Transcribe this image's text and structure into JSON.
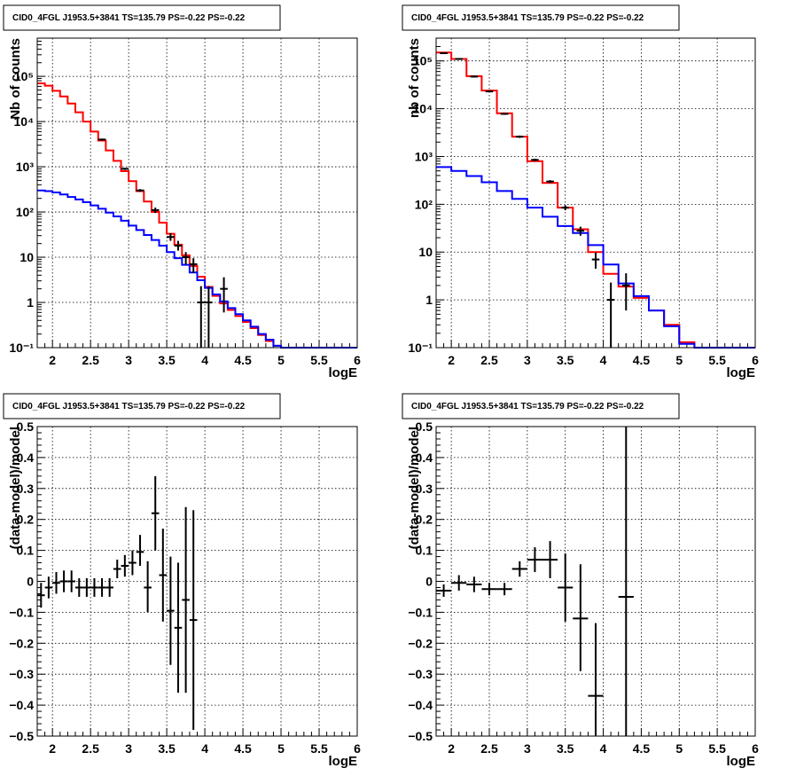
{
  "chart_data": [
    {
      "id": "p1",
      "type": "line",
      "title": "CID0_4FGL J1953.5+3841 TS=135.79 PS=-0.22 PS=-0.22",
      "xlabel": "logE",
      "ylabel": "Nb of counts",
      "xlim": [
        1.8,
        6.0
      ],
      "ylim": [
        0.1,
        700000
      ],
      "log_y": true,
      "grid": true,
      "xticks": [
        2,
        2.5,
        3,
        3.5,
        4,
        4.5,
        5,
        5.5,
        6
      ],
      "xtick_labels": [
        "2",
        "2.5",
        "3",
        "3.5",
        "4",
        "4.5",
        "5",
        "5.5",
        "6"
      ],
      "yticks": [
        0.1,
        1,
        10,
        100,
        1000,
        10000,
        100000
      ],
      "ytick_labels": [
        "10⁻¹",
        "1",
        "10",
        "10²",
        "10³",
        "10⁴",
        "10⁵"
      ],
      "bin_edges": [
        1.8,
        1.9,
        2.0,
        2.1,
        2.2,
        2.3,
        2.4,
        2.5,
        2.6,
        2.7,
        2.8,
        2.9,
        3.0,
        3.1,
        3.2,
        3.3,
        3.4,
        3.5,
        3.6,
        3.7,
        3.8,
        3.9,
        4.0,
        4.1,
        4.2,
        4.3,
        4.4,
        4.5,
        4.6,
        4.7,
        4.8,
        4.9,
        5.0,
        5.1,
        5.2,
        5.3,
        5.4,
        5.5,
        5.6,
        5.7,
        5.8,
        5.9,
        6.0
      ],
      "series": [
        {
          "color": "#ff0000",
          "values": [
            70000,
            62000,
            48000,
            36000,
            25000,
            16000,
            10000,
            6000,
            3800,
            2300,
            1350,
            800,
            480,
            290,
            170,
            100,
            58,
            33,
            19,
            11,
            6.4,
            3.7,
            2.2,
            1.4,
            0.95,
            0.68,
            0.5,
            0.37,
            0.27,
            0.19,
            0.14,
            0.11,
            0.1,
            0.1,
            0.1,
            0.1,
            0.1,
            0.1,
            0.1,
            0.1,
            0.1,
            0.1
          ]
        },
        {
          "color": "#0000ff",
          "values": [
            300,
            290,
            270,
            245,
            215,
            190,
            165,
            140,
            118,
            97,
            80,
            64,
            50,
            40,
            31,
            24,
            18,
            13,
            9.5,
            6.8,
            4.6,
            3.1,
            2.1,
            1.5,
            1.05,
            0.75,
            0.55,
            0.4,
            0.29,
            0.2,
            0.15,
            0.11,
            0.1,
            0.1,
            0.1,
            0.1,
            0.1,
            0.1,
            0.1,
            0.1,
            0.1,
            0.1
          ]
        }
      ],
      "points": [
        {
          "x": 2.65,
          "y": 4000,
          "ylo": 3800,
          "yhi": 4200
        },
        {
          "x": 2.95,
          "y": 900,
          "ylo": 850,
          "yhi": 950
        },
        {
          "x": 3.15,
          "y": 300,
          "ylo": 280,
          "yhi": 320
        },
        {
          "x": 3.35,
          "y": 110,
          "ylo": 95,
          "yhi": 125
        },
        {
          "x": 3.55,
          "y": 28,
          "ylo": 23,
          "yhi": 34
        },
        {
          "x": 3.65,
          "y": 18,
          "ylo": 14,
          "yhi": 23
        },
        {
          "x": 3.75,
          "y": 10,
          "ylo": 7,
          "yhi": 13
        },
        {
          "x": 3.85,
          "y": 7,
          "ylo": 4.5,
          "yhi": 9.5
        },
        {
          "x": 3.95,
          "y": 1,
          "ylo": 0.1,
          "yhi": 2.3
        },
        {
          "x": 4.05,
          "y": 1,
          "ylo": 0.1,
          "yhi": 2.3
        },
        {
          "x": 4.25,
          "y": 2,
          "ylo": 0.6,
          "yhi": 3.6
        }
      ]
    },
    {
      "id": "p2",
      "type": "line",
      "title": "CID0_4FGL J1953.5+3841 TS=135.79 PS=-0.22 PS=-0.22",
      "xlabel": "logE",
      "ylabel": "nb of counts",
      "xlim": [
        1.8,
        6.0
      ],
      "ylim": [
        0.1,
        300000
      ],
      "log_y": true,
      "grid": true,
      "xticks": [
        2,
        2.5,
        3,
        3.5,
        4,
        4.5,
        5,
        5.5,
        6
      ],
      "xtick_labels": [
        "2",
        "2.5",
        "3",
        "3.5",
        "4",
        "4.5",
        "5",
        "5.5",
        "6"
      ],
      "yticks": [
        0.1,
        1,
        10,
        100,
        1000,
        10000,
        100000
      ],
      "ytick_labels": [
        "10⁻¹",
        "1",
        "10",
        "10²",
        "10³",
        "10⁴",
        "10⁵"
      ],
      "bin_edges": [
        1.8,
        2.0,
        2.2,
        2.4,
        2.6,
        2.8,
        3.0,
        3.2,
        3.4,
        3.6,
        3.8,
        4.0,
        4.2,
        4.4,
        4.6,
        4.8,
        5.0,
        5.2,
        5.4,
        5.6,
        5.8,
        6.0
      ],
      "series": [
        {
          "color": "#ff0000",
          "values": [
            150000,
            110000,
            48000,
            24000,
            8000,
            2600,
            800,
            280,
            85,
            30,
            10,
            3.5,
            1.9,
            1.1,
            0.6,
            0.3,
            0.13,
            0.1,
            0.1,
            0.1,
            0.1
          ]
        },
        {
          "color": "#0000ff",
          "values": [
            600,
            500,
            390,
            290,
            190,
            130,
            85,
            55,
            35,
            25,
            14,
            5.5,
            2.2,
            1.2,
            0.6,
            0.28,
            0.12,
            0.1,
            0.1,
            0.1,
            0.1
          ]
        }
      ],
      "points": [
        {
          "x": 1.9,
          "y": 145000,
          "ylo": 140000,
          "yhi": 150000
        },
        {
          "x": 2.1,
          "y": 110000,
          "ylo": 105000,
          "yhi": 115000
        },
        {
          "x": 2.3,
          "y": 47000,
          "ylo": 45000,
          "yhi": 49000
        },
        {
          "x": 2.5,
          "y": 23000,
          "ylo": 22000,
          "yhi": 24000
        },
        {
          "x": 2.7,
          "y": 7800,
          "ylo": 7500,
          "yhi": 8100
        },
        {
          "x": 2.9,
          "y": 2600,
          "ylo": 2450,
          "yhi": 2750
        },
        {
          "x": 3.1,
          "y": 850,
          "ylo": 800,
          "yhi": 900
        },
        {
          "x": 3.3,
          "y": 300,
          "ylo": 280,
          "yhi": 320
        },
        {
          "x": 3.5,
          "y": 85,
          "ylo": 75,
          "yhi": 95
        },
        {
          "x": 3.7,
          "y": 28,
          "ylo": 22,
          "yhi": 34
        },
        {
          "x": 3.9,
          "y": 7,
          "ylo": 4.5,
          "yhi": 9.8
        },
        {
          "x": 4.1,
          "y": 1,
          "ylo": 0.1,
          "yhi": 2.3
        },
        {
          "x": 4.3,
          "y": 2,
          "ylo": 0.6,
          "yhi": 3.6
        }
      ]
    },
    {
      "id": "p3",
      "type": "scatter",
      "title": "CID0_4FGL J1953.5+3841 TS=135.79 PS=-0.22 PS=-0.22",
      "xlabel": "logE",
      "ylabel": "(data-model)/model",
      "xlim": [
        1.8,
        6.0
      ],
      "ylim": [
        -0.5,
        0.5
      ],
      "log_y": false,
      "grid": true,
      "xticks": [
        2,
        2.5,
        3,
        3.5,
        4,
        4.5,
        5,
        5.5,
        6
      ],
      "xtick_labels": [
        "2",
        "2.5",
        "3",
        "3.5",
        "4",
        "4.5",
        "5",
        "5.5",
        "6"
      ],
      "yticks": [
        -0.5,
        -0.4,
        -0.3,
        -0.2,
        -0.1,
        0,
        0.1,
        0.2,
        0.3,
        0.4,
        0.5
      ],
      "ytick_labels": [
        "−0.5",
        "−0.4",
        "−0.3",
        "−0.2",
        "−0.1",
        "0",
        "0.1",
        "0.2",
        "0.3",
        "0.4",
        "0.5"
      ],
      "xerr": 0.05,
      "points": [
        {
          "x": 1.85,
          "y": -0.045,
          "ylo": -0.085,
          "yhi": -0.005
        },
        {
          "x": 1.95,
          "y": -0.02,
          "ylo": -0.055,
          "yhi": 0.015
        },
        {
          "x": 2.05,
          "y": -0.005,
          "ylo": -0.04,
          "yhi": 0.03
        },
        {
          "x": 2.15,
          "y": 0.0,
          "ylo": -0.035,
          "yhi": 0.035
        },
        {
          "x": 2.25,
          "y": 0.0,
          "ylo": -0.035,
          "yhi": 0.035
        },
        {
          "x": 2.35,
          "y": -0.02,
          "ylo": -0.05,
          "yhi": 0.01
        },
        {
          "x": 2.45,
          "y": -0.02,
          "ylo": -0.05,
          "yhi": 0.01
        },
        {
          "x": 2.55,
          "y": -0.02,
          "ylo": -0.05,
          "yhi": 0.01
        },
        {
          "x": 2.65,
          "y": -0.02,
          "ylo": -0.05,
          "yhi": 0.01
        },
        {
          "x": 2.75,
          "y": -0.02,
          "ylo": -0.05,
          "yhi": 0.01
        },
        {
          "x": 2.85,
          "y": 0.04,
          "ylo": 0.01,
          "yhi": 0.07
        },
        {
          "x": 2.95,
          "y": 0.05,
          "ylo": 0.015,
          "yhi": 0.085
        },
        {
          "x": 3.05,
          "y": 0.06,
          "ylo": 0.02,
          "yhi": 0.1
        },
        {
          "x": 3.15,
          "y": 0.095,
          "ylo": 0.05,
          "yhi": 0.15
        },
        {
          "x": 3.25,
          "y": -0.02,
          "ylo": -0.1,
          "yhi": 0.065
        },
        {
          "x": 3.35,
          "y": 0.22,
          "ylo": 0.1,
          "yhi": 0.34
        },
        {
          "x": 3.45,
          "y": 0.02,
          "ylo": -0.13,
          "yhi": 0.17
        },
        {
          "x": 3.55,
          "y": -0.095,
          "ylo": -0.27,
          "yhi": 0.08
        },
        {
          "x": 3.65,
          "y": -0.15,
          "ylo": -0.36,
          "yhi": 0.06
        },
        {
          "x": 3.75,
          "y": -0.06,
          "ylo": -0.36,
          "yhi": 0.24
        },
        {
          "x": 3.85,
          "y": -0.125,
          "ylo": -0.48,
          "yhi": 0.23
        }
      ]
    },
    {
      "id": "p4",
      "type": "scatter",
      "title": "CID0_4FGL J1953.5+3841 TS=135.79 PS=-0.22 PS=-0.22",
      "xlabel": "logE",
      "ylabel": "(data-model)/model",
      "xlim": [
        1.8,
        6.0
      ],
      "ylim": [
        -0.5,
        0.5
      ],
      "log_y": false,
      "grid": true,
      "xticks": [
        2,
        2.5,
        3,
        3.5,
        4,
        4.5,
        5,
        5.5,
        6
      ],
      "xtick_labels": [
        "2",
        "2.5",
        "3",
        "3.5",
        "4",
        "4.5",
        "5",
        "5.5",
        "6"
      ],
      "yticks": [
        -0.5,
        -0.4,
        -0.3,
        -0.2,
        -0.1,
        0,
        0.1,
        0.2,
        0.3,
        0.4,
        0.5
      ],
      "ytick_labels": [
        "−0.5",
        "−0.4",
        "−0.3",
        "−0.2",
        "−0.1",
        "0",
        "0.1",
        "0.2",
        "0.3",
        "0.4",
        "0.5"
      ],
      "xerr": 0.1,
      "points": [
        {
          "x": 1.9,
          "y": -0.03,
          "ylo": -0.05,
          "yhi": -0.01
        },
        {
          "x": 2.1,
          "y": -0.005,
          "ylo": -0.03,
          "yhi": 0.02
        },
        {
          "x": 2.3,
          "y": -0.01,
          "ylo": -0.035,
          "yhi": 0.015
        },
        {
          "x": 2.5,
          "y": -0.025,
          "ylo": -0.045,
          "yhi": -0.005
        },
        {
          "x": 2.7,
          "y": -0.025,
          "ylo": -0.045,
          "yhi": -0.005
        },
        {
          "x": 2.9,
          "y": 0.04,
          "ylo": 0.015,
          "yhi": 0.065
        },
        {
          "x": 3.1,
          "y": 0.07,
          "ylo": 0.03,
          "yhi": 0.11
        },
        {
          "x": 3.3,
          "y": 0.07,
          "ylo": 0.01,
          "yhi": 0.13
        },
        {
          "x": 3.5,
          "y": -0.02,
          "ylo": -0.13,
          "yhi": 0.09
        },
        {
          "x": 3.7,
          "y": -0.12,
          "ylo": -0.29,
          "yhi": 0.055
        },
        {
          "x": 3.9,
          "y": -0.37,
          "ylo": -0.5,
          "yhi": -0.135
        },
        {
          "x": 4.3,
          "y": -0.05,
          "ylo": -0.5,
          "yhi": 0.5
        }
      ]
    }
  ]
}
